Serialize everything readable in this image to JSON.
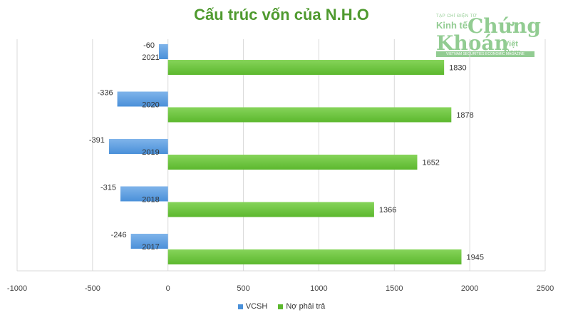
{
  "title": "Cấu trúc vốn của N.H.O",
  "watermark": {
    "small": "TẠP CHÍ ĐIỆN TỬ",
    "kinh_te": "Kinh tế",
    "chung": "Chứng",
    "khoan": "Khoán",
    "viet_nam": "Việt Nam",
    "tagline": "VIETNAM SECURITIES ECONOMIC MAGAZINE"
  },
  "chart_data": {
    "type": "bar",
    "orientation": "horizontal",
    "categories": [
      "2021",
      "2020",
      "2019",
      "2018",
      "2017"
    ],
    "series": [
      {
        "name": "VCSH",
        "values": [
          -60,
          -336,
          -391,
          -315,
          -246
        ],
        "color": "#4a90d9"
      },
      {
        "name": "Nợ phải trả",
        "values": [
          1830,
          1878,
          1652,
          1366,
          1945
        ],
        "color": "#5cb82e"
      }
    ],
    "xlim": [
      -1000,
      2500
    ],
    "xticks": [
      -1000,
      -500,
      0,
      500,
      1000,
      1500,
      2000,
      2500
    ],
    "xtick_labels": [
      "-1000",
      "-500",
      "0",
      "500",
      "1000",
      "1500",
      "2000",
      "2500"
    ],
    "grid": "vertical",
    "legend_position": "bottom"
  }
}
